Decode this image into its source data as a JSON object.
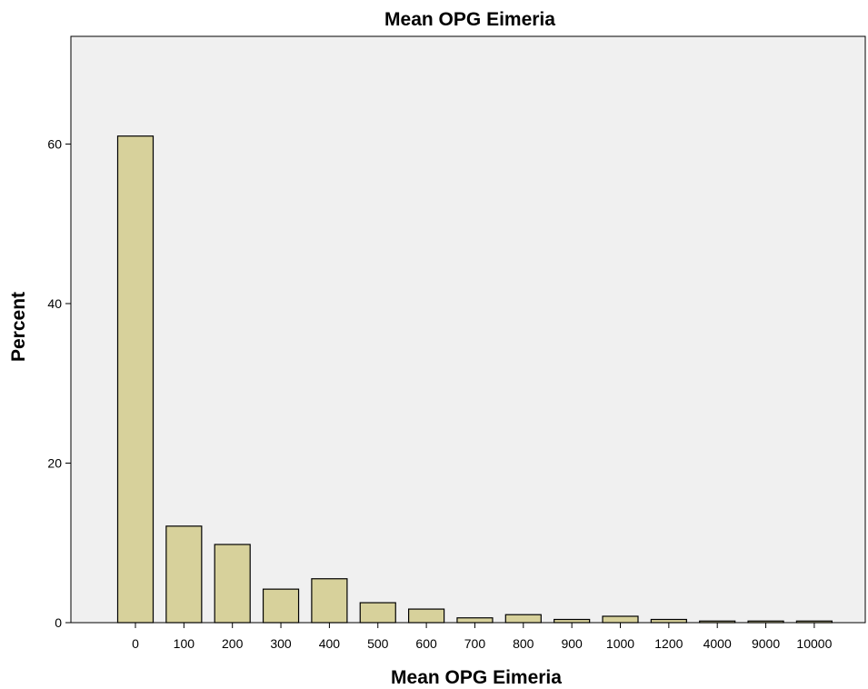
{
  "chart_data": {
    "type": "bar",
    "title": "Mean OPG Eimeria",
    "xlabel": "Mean OPG Eimeria",
    "ylabel": "Percent",
    "categories": [
      "0",
      "100",
      "200",
      "300",
      "400",
      "500",
      "600",
      "700",
      "800",
      "900",
      "1000",
      "1200",
      "4000",
      "9000",
      "10000"
    ],
    "values": [
      61.0,
      12.1,
      9.8,
      4.2,
      5.5,
      2.5,
      1.7,
      0.6,
      1.0,
      0.4,
      0.8,
      0.4,
      0.2,
      0.2,
      0.2
    ],
    "ylim": [
      0,
      73.5
    ],
    "yticks": [
      0,
      20,
      40,
      60
    ],
    "grid": false,
    "colors": {
      "bar_fill": "#d7d19b",
      "bar_stroke": "#000000",
      "plot_background": "#f0f0f0",
      "page_background": "#ffffff"
    }
  }
}
